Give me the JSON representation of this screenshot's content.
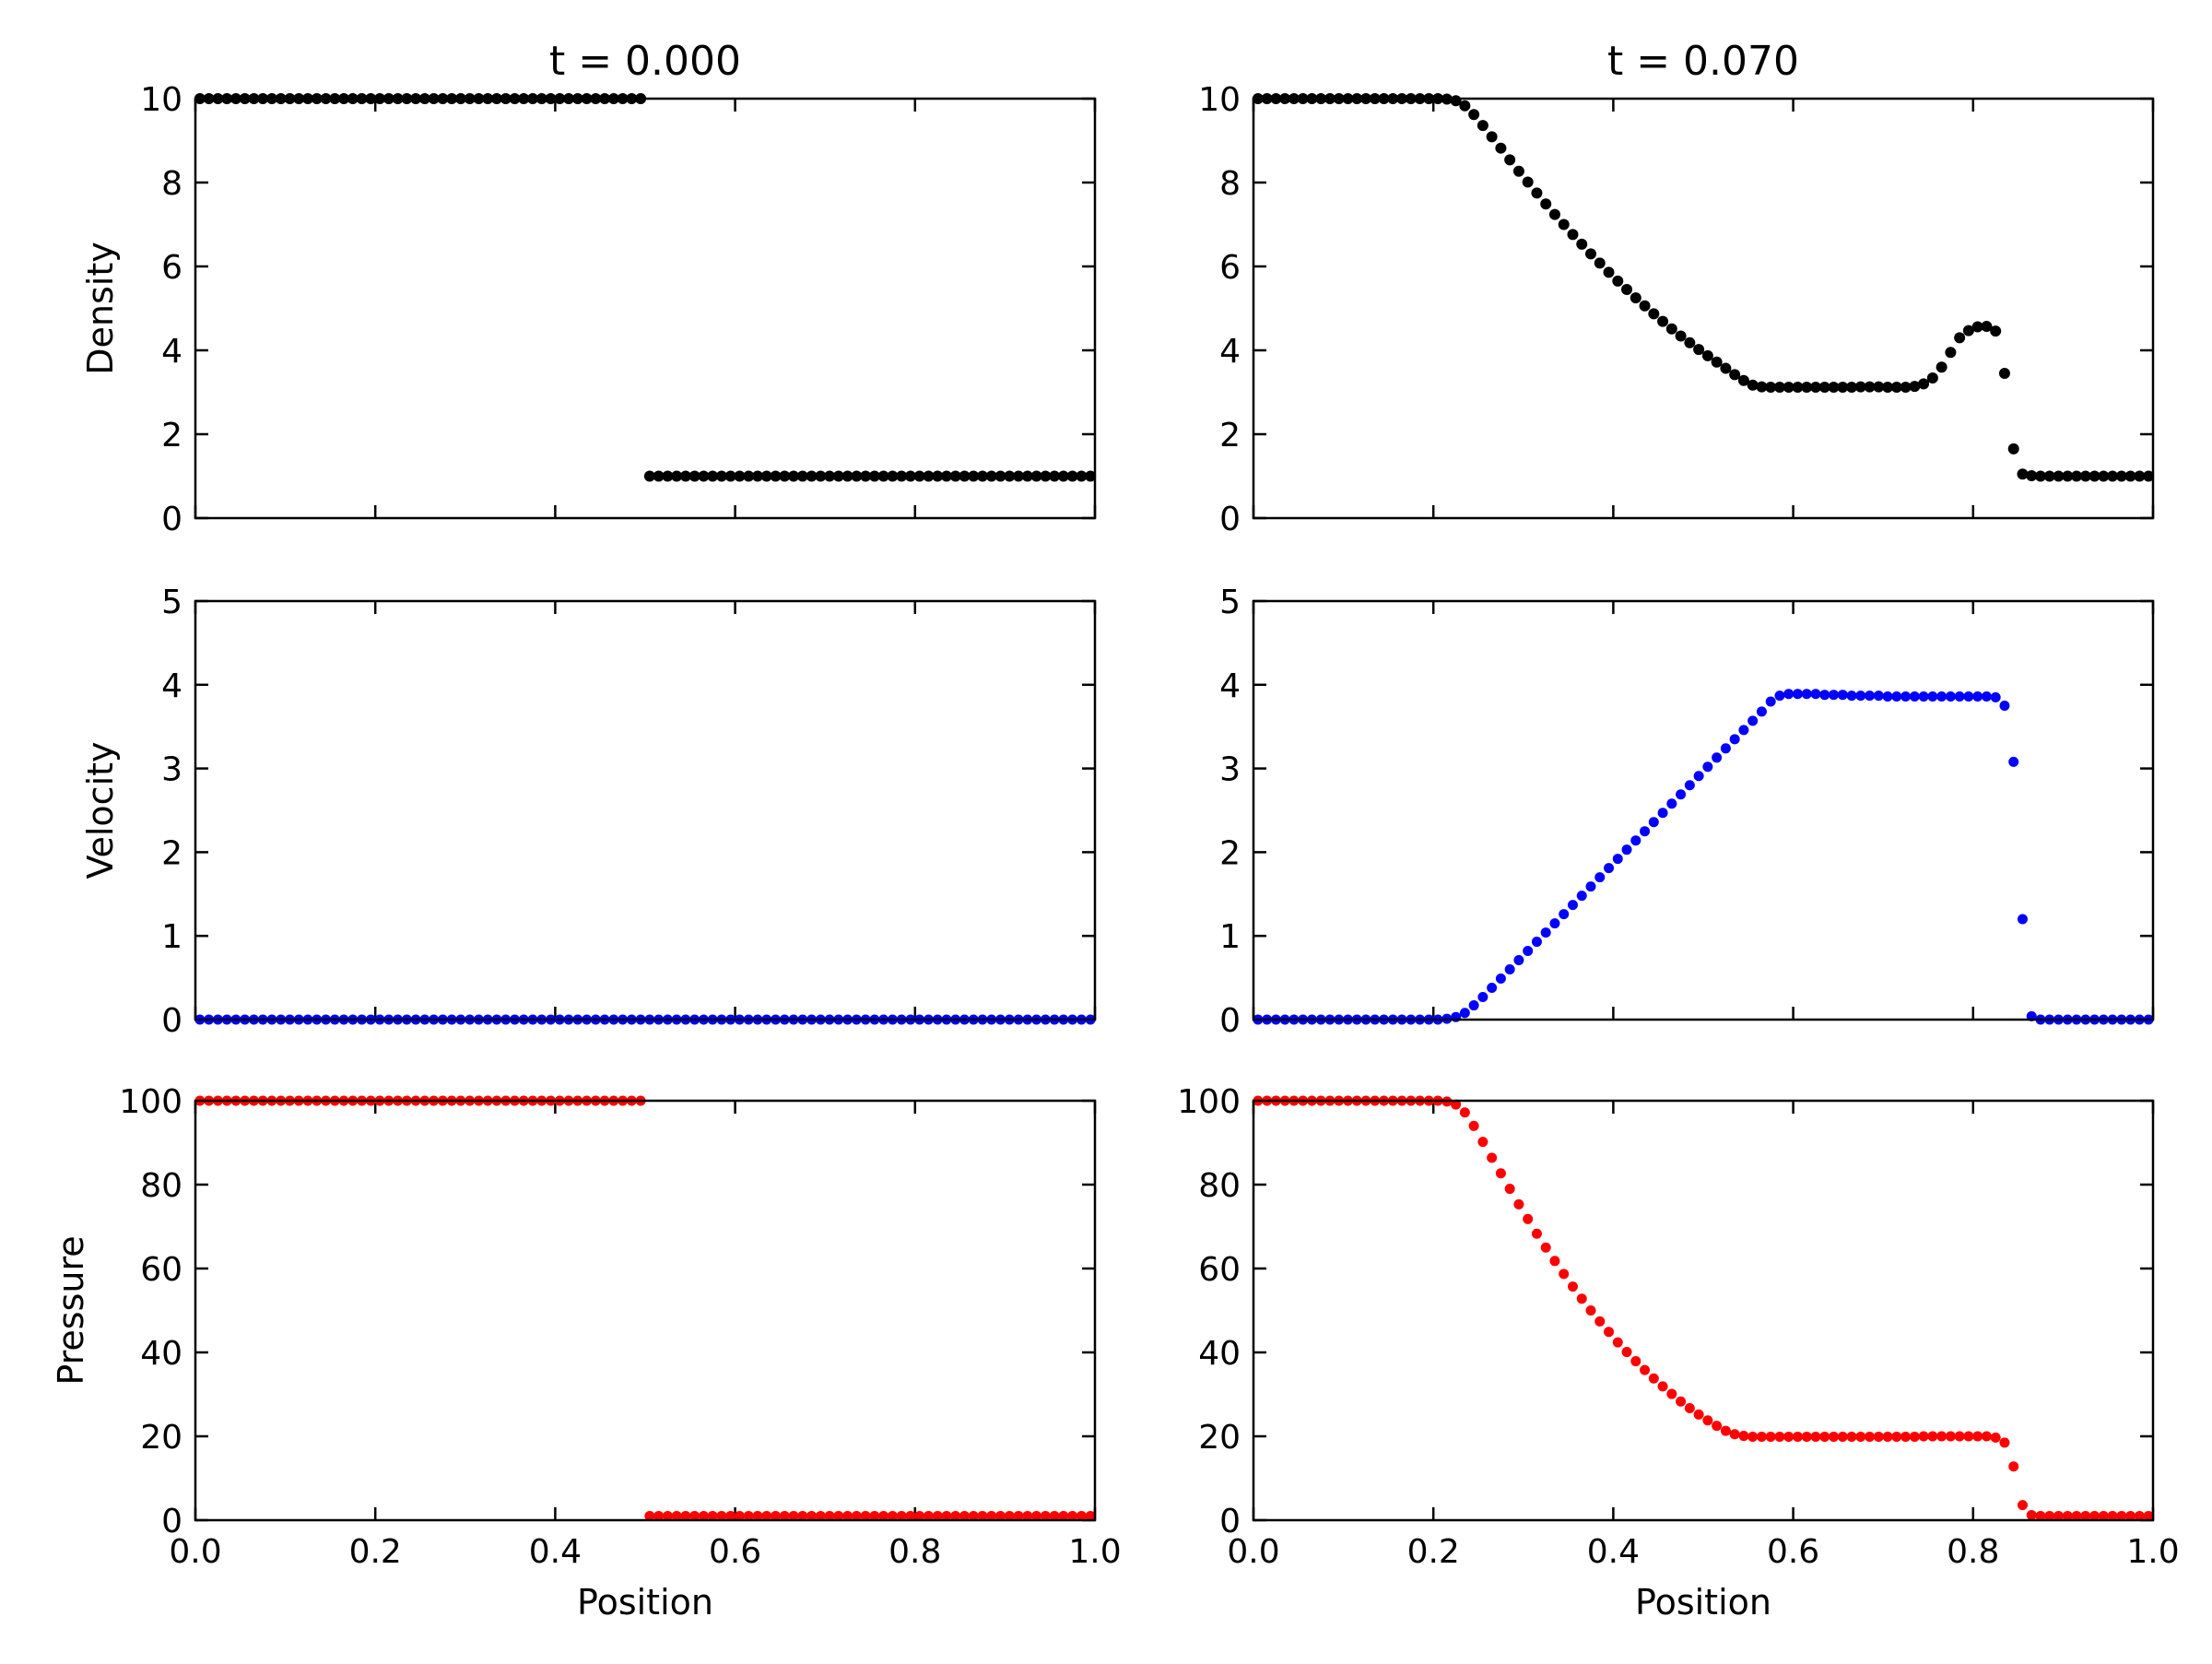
{
  "chart_data": {
    "type": "scatter",
    "layout": "3x2 grid",
    "grid": false,
    "columns": [
      {
        "title": "t = 0.000"
      },
      {
        "title": "t = 0.070"
      }
    ],
    "xlabel": "Position",
    "xlim": [
      0.0,
      1.0
    ],
    "xticks": [
      "0.0",
      "0.2",
      "0.4",
      "0.6",
      "0.8",
      "1.0"
    ],
    "rows": [
      {
        "ylabel": "Density",
        "ylim": [
          0,
          10
        ],
        "yticks": [
          "0",
          "2",
          "4",
          "6",
          "8",
          "10"
        ],
        "color": "#000000"
      },
      {
        "ylabel": "Velocity",
        "ylim": [
          0,
          5
        ],
        "yticks": [
          "0",
          "1",
          "2",
          "3",
          "4",
          "5"
        ],
        "color": "#0000ff"
      },
      {
        "ylabel": "Pressure",
        "ylim": [
          0,
          100
        ],
        "yticks": [
          "0",
          "20",
          "40",
          "60",
          "80",
          "100"
        ],
        "color": "#ff0000"
      }
    ],
    "x": [
      0.005,
      0.015,
      0.025,
      0.035,
      0.045,
      0.055,
      0.065,
      0.075,
      0.085,
      0.095,
      0.105,
      0.115,
      0.125,
      0.135,
      0.145,
      0.155,
      0.165,
      0.175,
      0.185,
      0.195,
      0.205,
      0.215,
      0.225,
      0.235,
      0.245,
      0.255,
      0.265,
      0.275,
      0.285,
      0.295,
      0.305,
      0.315,
      0.325,
      0.335,
      0.345,
      0.355,
      0.365,
      0.375,
      0.385,
      0.395,
      0.405,
      0.415,
      0.425,
      0.435,
      0.445,
      0.455,
      0.465,
      0.475,
      0.485,
      0.495,
      0.505,
      0.515,
      0.525,
      0.535,
      0.545,
      0.555,
      0.565,
      0.575,
      0.585,
      0.595,
      0.605,
      0.615,
      0.625,
      0.635,
      0.645,
      0.655,
      0.665,
      0.675,
      0.685,
      0.695,
      0.705,
      0.715,
      0.725,
      0.735,
      0.745,
      0.755,
      0.765,
      0.775,
      0.785,
      0.795,
      0.805,
      0.815,
      0.825,
      0.835,
      0.845,
      0.855,
      0.865,
      0.875,
      0.885,
      0.895,
      0.905,
      0.915,
      0.925,
      0.935,
      0.945,
      0.955,
      0.965,
      0.975,
      0.985,
      0.995
    ],
    "series": [
      {
        "name": "Density",
        "panel": "0,0",
        "values": [
          10,
          10,
          10,
          10,
          10,
          10,
          10,
          10,
          10,
          10,
          10,
          10,
          10,
          10,
          10,
          10,
          10,
          10,
          10,
          10,
          10,
          10,
          10,
          10,
          10,
          10,
          10,
          10,
          10,
          10,
          10,
          10,
          10,
          10,
          10,
          10,
          10,
          10,
          10,
          10,
          10,
          10,
          10,
          10,
          10,
          10,
          10,
          10,
          10,
          10,
          1,
          1,
          1,
          1,
          1,
          1,
          1,
          1,
          1,
          1,
          1,
          1,
          1,
          1,
          1,
          1,
          1,
          1,
          1,
          1,
          1,
          1,
          1,
          1,
          1,
          1,
          1,
          1,
          1,
          1,
          1,
          1,
          1,
          1,
          1,
          1,
          1,
          1,
          1,
          1,
          1,
          1,
          1,
          1,
          1,
          1,
          1,
          1,
          1,
          1
        ]
      },
      {
        "name": "Density",
        "panel": "0,1",
        "values": [
          10,
          10,
          10,
          10,
          10,
          10,
          10,
          10,
          10,
          10,
          10,
          10,
          10,
          10,
          10,
          10,
          10,
          10,
          10,
          10,
          10,
          9.99,
          9.95,
          9.83,
          9.62,
          9.36,
          9.09,
          8.82,
          8.54,
          8.27,
          8.01,
          7.75,
          7.49,
          7.24,
          7,
          6.76,
          6.53,
          6.3,
          6.08,
          5.86,
          5.65,
          5.45,
          5.25,
          5.06,
          4.87,
          4.69,
          4.51,
          4.34,
          4.18,
          4.02,
          3.87,
          3.72,
          3.57,
          3.42,
          3.28,
          3.17,
          3.13,
          3.12,
          3.12,
          3.12,
          3.12,
          3.12,
          3.12,
          3.12,
          3.12,
          3.12,
          3.12,
          3.13,
          3.13,
          3.13,
          3.12,
          3.12,
          3.12,
          3.14,
          3.2,
          3.34,
          3.6,
          3.95,
          4.3,
          4.47,
          4.56,
          4.57,
          4.46,
          3.45,
          1.65,
          1.05,
          1.01,
          1,
          1,
          1,
          1,
          1,
          1,
          1,
          1,
          1,
          1,
          1,
          1,
          1
        ]
      },
      {
        "name": "Velocity",
        "panel": "1,0",
        "values": [
          0,
          0,
          0,
          0,
          0,
          0,
          0,
          0,
          0,
          0,
          0,
          0,
          0,
          0,
          0,
          0,
          0,
          0,
          0,
          0,
          0,
          0,
          0,
          0,
          0,
          0,
          0,
          0,
          0,
          0,
          0,
          0,
          0,
          0,
          0,
          0,
          0,
          0,
          0,
          0,
          0,
          0,
          0,
          0,
          0,
          0,
          0,
          0,
          0,
          0,
          0,
          0,
          0,
          0,
          0,
          0,
          0,
          0,
          0,
          0,
          0,
          0,
          0,
          0,
          0,
          0,
          0,
          0,
          0,
          0,
          0,
          0,
          0,
          0,
          0,
          0,
          0,
          0,
          0,
          0,
          0,
          0,
          0,
          0,
          0,
          0,
          0,
          0,
          0,
          0,
          0,
          0,
          0,
          0,
          0,
          0,
          0,
          0,
          0,
          0
        ]
      },
      {
        "name": "Velocity",
        "panel": "1,1",
        "values": [
          0,
          0,
          0,
          0,
          0,
          0,
          0,
          0,
          0,
          0,
          0,
          0,
          0,
          0,
          0,
          0,
          0,
          0,
          0,
          0,
          0,
          0.01,
          0.03,
          0.08,
          0.17,
          0.27,
          0.38,
          0.49,
          0.6,
          0.71,
          0.82,
          0.93,
          1.04,
          1.15,
          1.26,
          1.37,
          1.48,
          1.59,
          1.7,
          1.81,
          1.92,
          2.03,
          2.14,
          2.25,
          2.36,
          2.47,
          2.58,
          2.69,
          2.8,
          2.91,
          3.02,
          3.13,
          3.24,
          3.35,
          3.46,
          3.57,
          3.68,
          3.8,
          3.87,
          3.89,
          3.89,
          3.89,
          3.89,
          3.88,
          3.88,
          3.88,
          3.87,
          3.87,
          3.87,
          3.87,
          3.86,
          3.86,
          3.86,
          3.86,
          3.86,
          3.86,
          3.86,
          3.86,
          3.86,
          3.86,
          3.86,
          3.86,
          3.85,
          3.75,
          3.08,
          1.2,
          0.04,
          0,
          0,
          0,
          0,
          0,
          0,
          0,
          0,
          0,
          0,
          0,
          0,
          0
        ]
      },
      {
        "name": "Pressure",
        "panel": "2,0",
        "values": [
          100,
          100,
          100,
          100,
          100,
          100,
          100,
          100,
          100,
          100,
          100,
          100,
          100,
          100,
          100,
          100,
          100,
          100,
          100,
          100,
          100,
          100,
          100,
          100,
          100,
          100,
          100,
          100,
          100,
          100,
          100,
          100,
          100,
          100,
          100,
          100,
          100,
          100,
          100,
          100,
          100,
          100,
          100,
          100,
          100,
          100,
          100,
          100,
          100,
          100,
          1,
          1,
          1,
          1,
          1,
          1,
          1,
          1,
          1,
          1,
          1,
          1,
          1,
          1,
          1,
          1,
          1,
          1,
          1,
          1,
          1,
          1,
          1,
          1,
          1,
          1,
          1,
          1,
          1,
          1,
          1,
          1,
          1,
          1,
          1,
          1,
          1,
          1,
          1,
          1,
          1,
          1,
          1,
          1,
          1,
          1,
          1,
          1,
          1,
          1
        ]
      },
      {
        "name": "Pressure",
        "panel": "2,1",
        "values": [
          100,
          100,
          100,
          100,
          100,
          100,
          100,
          100,
          100,
          100,
          100,
          100,
          100,
          100,
          100,
          100,
          100,
          100,
          100,
          100,
          100,
          99.8,
          99.1,
          97.2,
          94,
          90.2,
          86.4,
          82.7,
          79,
          75.3,
          71.8,
          68.3,
          65,
          61.8,
          58.7,
          55.7,
          52.8,
          50,
          47.4,
          44.9,
          42.4,
          40.1,
          37.9,
          35.8,
          33.8,
          31.9,
          30.1,
          28.3,
          26.7,
          25.2,
          23.8,
          22.5,
          21.3,
          20.5,
          20.1,
          19.9,
          19.9,
          19.9,
          19.9,
          19.9,
          19.9,
          19.9,
          19.9,
          19.9,
          19.9,
          19.9,
          19.9,
          19.9,
          19.9,
          19.9,
          19.9,
          19.9,
          19.9,
          19.9,
          20,
          20,
          20,
          20,
          20,
          20,
          20,
          20,
          19.7,
          18.5,
          12.8,
          3.6,
          1.2,
          1,
          1,
          1,
          1,
          1,
          1,
          1,
          1,
          1,
          1,
          1,
          1,
          1
        ]
      }
    ]
  }
}
